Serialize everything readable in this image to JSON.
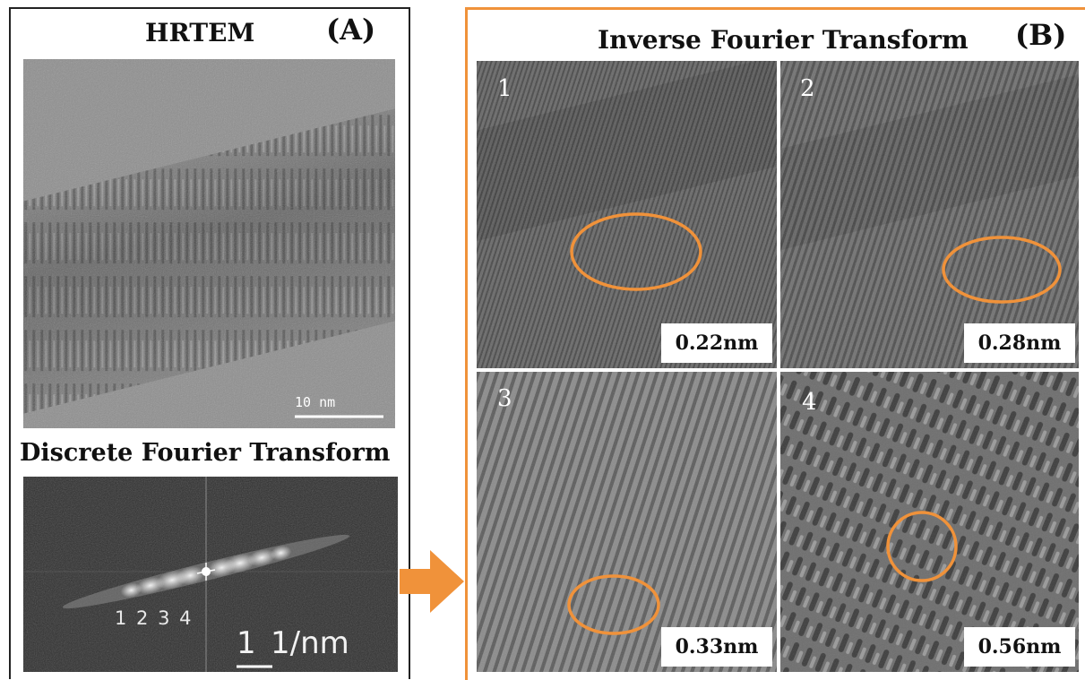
{
  "panel_a": {
    "label": "(A)",
    "hrtem_title": "HRTEM",
    "scale_bar": "10 nm",
    "dft_title": "Discrete Fourier Transform",
    "dft_numbers": "1 2 3 4",
    "dft_scale_num": "1",
    "dft_scale_unit": "1/nm"
  },
  "panel_b": {
    "label": "(B)",
    "title": "Inverse Fourier Transform",
    "quadrants": [
      {
        "number": "1",
        "spacing": "0.22nm"
      },
      {
        "number": "2",
        "spacing": "0.28nm"
      },
      {
        "number": "3",
        "spacing": "0.33nm"
      },
      {
        "number": "4",
        "spacing": "0.56nm"
      }
    ]
  },
  "colors": {
    "accent": "#f0923a",
    "frame": "#222222"
  }
}
